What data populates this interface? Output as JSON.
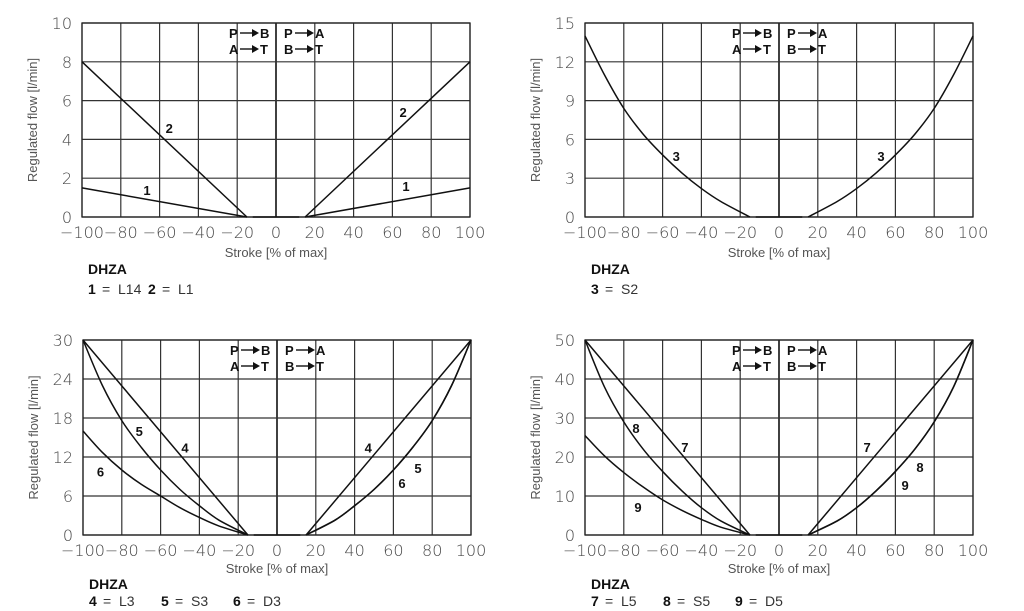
{
  "chart_data": [
    {
      "type": "line",
      "xlabel": "Stroke [% of max]",
      "ylabel": "Regulated flow [l/min]",
      "xlim": [
        -100,
        100
      ],
      "ylim": [
        0,
        10
      ],
      "xticks": [
        -100,
        -80,
        -60,
        -40,
        -20,
        0,
        20,
        40,
        60,
        80,
        100
      ],
      "yticks": [
        0,
        2,
        4,
        6,
        8,
        10
      ],
      "grid": true,
      "flow_left": [
        [
          "P",
          "B"
        ],
        [
          "A",
          "T"
        ]
      ],
      "flow_right": [
        [
          "P",
          "A"
        ],
        [
          "B",
          "T"
        ]
      ],
      "model": "DHZA",
      "legend": [
        {
          "num": "1",
          "code": "L14"
        },
        {
          "num": "2",
          "code": "L1"
        }
      ],
      "series": [
        {
          "name": "1",
          "left": [
            [
              -100,
              1.5
            ],
            [
              -15,
              0
            ]
          ],
          "right": [
            [
              15,
              0
            ],
            [
              100,
              1.5
            ]
          ]
        },
        {
          "name": "2",
          "left": [
            [
              -100,
              8
            ],
            [
              -15,
              0
            ]
          ],
          "right": [
            [
              15,
              0
            ],
            [
              100,
              8
            ]
          ]
        }
      ],
      "annotations": [
        {
          "text": "2",
          "x": -55,
          "y": 4.6
        },
        {
          "text": "2",
          "x": 65.5,
          "y": 5.4
        },
        {
          "text": "1",
          "x": -66.5,
          "y": 1.4
        },
        {
          "text": "1",
          "x": 67,
          "y": 1.6
        }
      ]
    },
    {
      "type": "line",
      "xlabel": "Stroke [% of max]",
      "ylabel": "Regulated flow [l/min]",
      "xlim": [
        -100,
        100
      ],
      "ylim": [
        0,
        15
      ],
      "xticks": [
        -100,
        -80,
        -60,
        -40,
        -20,
        0,
        20,
        40,
        60,
        80,
        100
      ],
      "yticks": [
        0,
        3,
        6,
        9,
        12,
        15
      ],
      "grid": true,
      "flow_left": [
        [
          "P",
          "B"
        ],
        [
          "A",
          "T"
        ]
      ],
      "flow_right": [
        [
          "P",
          "A"
        ],
        [
          "B",
          "T"
        ]
      ],
      "model": "DHZA",
      "legend": [
        {
          "num": "3",
          "code": "S2"
        }
      ],
      "series": [
        {
          "name": "3",
          "left": [
            [
              -100,
              14
            ],
            [
              -90,
              11
            ],
            [
              -80,
              8.4
            ],
            [
              -70,
              6.4
            ],
            [
              -60,
              4.8
            ],
            [
              -50,
              3.4
            ],
            [
              -40,
              2.2
            ],
            [
              -30,
              1.2
            ],
            [
              -15,
              0
            ]
          ],
          "right": [
            [
              15,
              0
            ],
            [
              30,
              1.2
            ],
            [
              40,
              2.2
            ],
            [
              50,
              3.4
            ],
            [
              60,
              4.8
            ],
            [
              70,
              6.4
            ],
            [
              80,
              8.4
            ],
            [
              90,
              11
            ],
            [
              100,
              14
            ]
          ]
        }
      ],
      "annotations": [
        {
          "text": "3",
          "x": -53,
          "y": 4.7
        },
        {
          "text": "3",
          "x": 52.6,
          "y": 4.7
        }
      ]
    },
    {
      "type": "line",
      "xlabel": "Stroke [% of max]",
      "ylabel": "Regulated flow [l/min]",
      "xlim": [
        -100,
        100
      ],
      "ylim": [
        0,
        30
      ],
      "xticks": [
        -100,
        -80,
        -60,
        -40,
        -20,
        0,
        20,
        40,
        60,
        80,
        100
      ],
      "yticks": [
        0,
        6,
        12,
        18,
        24,
        30
      ],
      "grid": true,
      "flow_left": [
        [
          "P",
          "B"
        ],
        [
          "A",
          "T"
        ]
      ],
      "flow_right": [
        [
          "P",
          "A"
        ],
        [
          "B",
          "T"
        ]
      ],
      "model": "DHZA",
      "legend": [
        {
          "num": "4",
          "code": "L3"
        },
        {
          "num": "5",
          "code": "S3"
        },
        {
          "num": "6",
          "code": "D3"
        }
      ],
      "series": [
        {
          "name": "4",
          "left": [
            [
              -100,
              30
            ],
            [
              -15,
              0
            ]
          ],
          "right": [
            [
              15,
              0
            ],
            [
              100,
              30
            ]
          ]
        },
        {
          "name": "5",
          "left": [
            [
              -100,
              30
            ],
            [
              -90,
              23
            ],
            [
              -80,
              17.6
            ],
            [
              -70,
              13.5
            ],
            [
              -60,
              10
            ],
            [
              -50,
              7
            ],
            [
              -40,
              4.5
            ],
            [
              -30,
              2.3
            ],
            [
              -15,
              0
            ]
          ],
          "right": [
            [
              15,
              0
            ],
            [
              30,
              2.3
            ],
            [
              40,
              4.5
            ],
            [
              50,
              7
            ],
            [
              60,
              10
            ],
            [
              70,
              13.5
            ],
            [
              80,
              17.6
            ],
            [
              90,
              23
            ],
            [
              100,
              30
            ]
          ]
        },
        {
          "name": "6",
          "left": [
            [
              -100,
              16
            ],
            [
              -90,
              12.7
            ],
            [
              -80,
              10
            ],
            [
              -70,
              7.8
            ],
            [
              -60,
              6
            ],
            [
              -50,
              4.2
            ],
            [
              -40,
              2.7
            ],
            [
              -30,
              1.4
            ],
            [
              -15,
              0
            ]
          ],
          "right": [
            [
              15,
              0
            ],
            [
              30,
              2.3
            ],
            [
              40,
              4.5
            ],
            [
              50,
              7
            ],
            [
              60,
              10
            ],
            [
              70,
              13.5
            ],
            [
              80,
              17.6
            ],
            [
              90,
              23
            ],
            [
              100,
              30
            ]
          ]
        }
      ],
      "annotations": [
        {
          "text": "5",
          "x": -71,
          "y": 16
        },
        {
          "text": "4",
          "x": -47.4,
          "y": 13.5
        },
        {
          "text": "6",
          "x": -91,
          "y": 9.8
        },
        {
          "text": "4",
          "x": 47,
          "y": 13.5
        },
        {
          "text": "5",
          "x": 72.7,
          "y": 10.3
        },
        {
          "text": "6",
          "x": 64.4,
          "y": 8
        }
      ]
    },
    {
      "type": "line",
      "xlabel": "Stroke [% of max]",
      "ylabel": "Regulated flow [l/min]",
      "xlim": [
        -100,
        100
      ],
      "ylim": [
        0,
        50
      ],
      "xticks": [
        -100,
        -80,
        -60,
        -40,
        -20,
        0,
        20,
        40,
        60,
        80,
        100
      ],
      "yticks": [
        0,
        10,
        20,
        30,
        40,
        50
      ],
      "grid": true,
      "flow_left": [
        [
          "P",
          "B"
        ],
        [
          "A",
          "T"
        ]
      ],
      "flow_right": [
        [
          "P",
          "A"
        ],
        [
          "B",
          "T"
        ]
      ],
      "model": "DHZA",
      "legend": [
        {
          "num": "7",
          "code": "L5"
        },
        {
          "num": "8",
          "code": "S5"
        },
        {
          "num": "9",
          "code": "D5"
        }
      ],
      "series": [
        {
          "name": "7",
          "left": [
            [
              -100,
              50
            ],
            [
              -15,
              0
            ]
          ],
          "right": [
            [
              15,
              0
            ],
            [
              100,
              50
            ]
          ]
        },
        {
          "name": "8",
          "left": [
            [
              -100,
              50
            ],
            [
              -90,
              38
            ],
            [
              -80,
              29
            ],
            [
              -70,
              22
            ],
            [
              -60,
              16.3
            ],
            [
              -50,
              11.3
            ],
            [
              -40,
              7
            ],
            [
              -30,
              3.6
            ],
            [
              -15,
              0
            ]
          ],
          "right": [
            [
              15,
              0
            ],
            [
              30,
              3.6
            ],
            [
              40,
              7
            ],
            [
              50,
              11.3
            ],
            [
              60,
              16.3
            ],
            [
              70,
              22
            ],
            [
              80,
              29
            ],
            [
              90,
              38
            ],
            [
              100,
              50
            ]
          ]
        },
        {
          "name": "9",
          "left": [
            [
              -100,
              25.5
            ],
            [
              -90,
              20.3
            ],
            [
              -80,
              16
            ],
            [
              -70,
              12.3
            ],
            [
              -60,
              9
            ],
            [
              -50,
              6.3
            ],
            [
              -40,
              4
            ],
            [
              -30,
              2
            ],
            [
              -15,
              0
            ]
          ],
          "right": [
            [
              15,
              0
            ],
            [
              30,
              3.6
            ],
            [
              40,
              7
            ],
            [
              50,
              11.3
            ],
            [
              60,
              16.3
            ],
            [
              70,
              22
            ],
            [
              80,
              29
            ],
            [
              90,
              38
            ],
            [
              100,
              50
            ]
          ]
        }
      ],
      "annotations": [
        {
          "text": "8",
          "x": -73.7,
          "y": 27.4
        },
        {
          "text": "7",
          "x": -48.5,
          "y": 22.6
        },
        {
          "text": "9",
          "x": -72.7,
          "y": 7.2
        },
        {
          "text": "7",
          "x": 45.4,
          "y": 22.6
        },
        {
          "text": "8",
          "x": 72.7,
          "y": 17.4
        },
        {
          "text": "9",
          "x": 65,
          "y": 12.8
        }
      ]
    }
  ]
}
